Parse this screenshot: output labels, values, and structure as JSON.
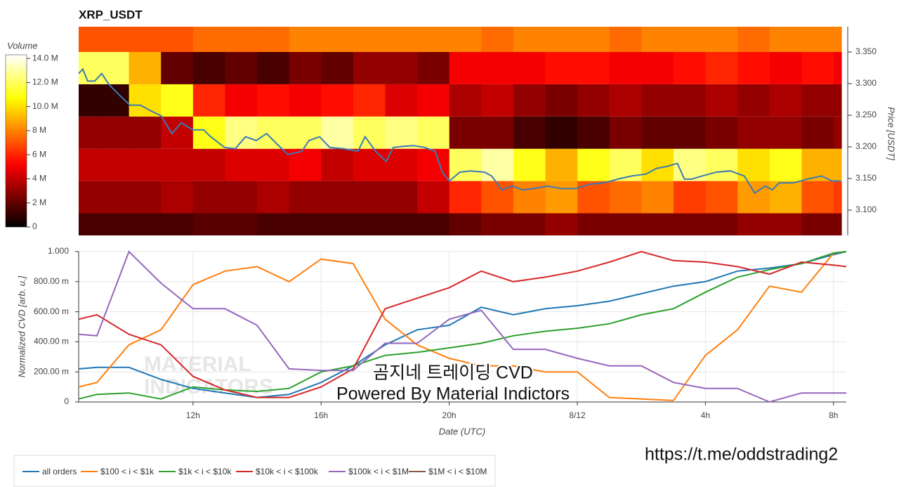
{
  "chart_data": [
    {
      "type": "heatmap",
      "title": "XRP_USDT",
      "y_label": "Price [USDT]",
      "colorbar_label": "Volume",
      "colormap": "hot",
      "xlim": [
        8.43,
        32.24
      ],
      "x_bins": [
        8.43,
        9,
        10,
        11,
        12,
        13,
        14,
        15,
        16,
        17,
        18,
        19,
        20,
        21,
        22,
        23,
        24,
        25,
        26,
        27,
        28,
        29,
        30,
        31,
        32,
        32.24
      ],
      "y_bins": [
        3.06,
        3.095,
        3.146,
        3.197,
        3.248,
        3.299,
        3.35,
        3.39
      ],
      "z": [
        [
          1500000.0,
          1500000.0,
          1500000.0,
          1500000.0,
          1800000.0,
          1800000.0,
          1500000.0,
          1500000.0,
          1500000.0,
          1500000.0,
          1500000.0,
          1500000.0,
          2000000.0,
          2500000.0,
          2500000.0,
          3000000.0,
          2500000.0,
          2500000.0,
          2500000.0,
          2500000.0,
          2500000.0,
          3000000.0,
          3000000.0,
          2500000.0,
          2500000.0
        ],
        [
          3000000.0,
          3000000.0,
          3000000.0,
          3500000.0,
          3000000.0,
          3000000.0,
          3500000.0,
          3000000.0,
          3000000.0,
          3000000.0,
          3000000.0,
          4000000.0,
          6000000.0,
          7000000.0,
          8000000.0,
          8500000.0,
          7000000.0,
          7500000.0,
          8000000.0,
          6500000.0,
          7000000.0,
          8500000.0,
          9000000.0,
          7000000.0,
          6500000.0
        ],
        [
          4000000.0,
          4000000.0,
          4000000.0,
          4000000.0,
          4000000.0,
          4500000.0,
          4500000.0,
          5000000.0,
          4000000.0,
          4500000.0,
          4500000.0,
          5000000.0,
          12000000.0,
          13000000.0,
          11000000.0,
          9000000.0,
          11000000.0,
          12000000.0,
          10000000.0,
          12500000.0,
          12000000.0,
          10000000.0,
          11000000.0,
          9000000.0,
          9000000.0
        ],
        [
          3000000.0,
          3000000.0,
          3000000.0,
          4000000.0,
          11000000.0,
          12500000.0,
          12000000.0,
          12000000.0,
          13000000.0,
          12000000.0,
          12500000.0,
          12000000.0,
          2500000.0,
          2500000.0,
          1500000.0,
          1000000.0,
          1500000.0,
          2500000.0,
          2000000.0,
          2000000.0,
          2500000.0,
          3000000.0,
          3000000.0,
          2500000.0,
          3000000.0
        ],
        [
          1000000.0,
          1000000.0,
          10000000.0,
          11000000.0,
          6000000.0,
          5000000.0,
          5500000.0,
          5000000.0,
          5500000.0,
          6000000.0,
          4500000.0,
          5000000.0,
          3500000.0,
          4000000.0,
          3000000.0,
          2500000.0,
          3000000.0,
          3500000.0,
          3000000.0,
          3000000.0,
          3500000.0,
          3000000.0,
          3500000.0,
          3000000.0,
          3000000.0
        ],
        [
          12000000.0,
          12000000.0,
          9000000.0,
          2000000.0,
          1500000.0,
          2000000.0,
          1500000.0,
          2500000.0,
          2000000.0,
          3000000.0,
          3000000.0,
          2500000.0,
          5000000.0,
          5000000.0,
          5000000.0,
          5500000.0,
          5500000.0,
          5000000.0,
          5000000.0,
          5500000.0,
          6000000.0,
          5500000.0,
          5000000.0,
          5500000.0,
          5000000.0
        ],
        [
          7000000.0,
          7000000.0,
          7000000.0,
          7000000.0,
          7500000.0,
          7500000.0,
          7500000.0,
          8000000.0,
          8000000.0,
          8000000.0,
          8000000.0,
          8000000.0,
          8000000.0,
          7500000.0,
          8000000.0,
          8000000.0,
          8000000.0,
          7500000.0,
          8000000.0,
          8000000.0,
          8000000.0,
          7500000.0,
          8000000.0,
          8000000.0,
          8000000.0
        ]
      ],
      "clim": [
        0,
        14300000
      ],
      "cticks": [
        0,
        {
          "value": 2000000,
          "label": "2 M"
        },
        {
          "value": 4000000,
          "label": "4 M"
        },
        {
          "value": 6000000,
          "label": "6 M"
        },
        {
          "value": 8000000,
          "label": "8 M"
        },
        {
          "value": 10000000,
          "label": "10.0 M"
        },
        {
          "value": 12000000,
          "label": "12.0 M"
        },
        {
          "value": 14000000,
          "label": "14.0 M"
        }
      ],
      "ylim": [
        3.06,
        3.39
      ],
      "yticks": [
        {
          "value": 3.1,
          "label": "3.100"
        },
        {
          "value": 3.15,
          "label": "3.150"
        },
        {
          "value": 3.2,
          "label": "3.200"
        },
        {
          "value": 3.25,
          "label": "3.250"
        },
        {
          "value": 3.3,
          "label": "3.300"
        },
        {
          "value": 3.35,
          "label": "3.350"
        }
      ],
      "line": {
        "color": "#3a7ab8",
        "x": [
          8.43,
          8.56,
          8.71,
          8.93,
          9.15,
          9.37,
          9.7,
          10.03,
          10.36,
          10.68,
          11.01,
          11.34,
          11.63,
          12.0,
          12.33,
          12.55,
          12.99,
          13.32,
          13.64,
          13.97,
          14.3,
          14.63,
          14.96,
          15.4,
          15.62,
          15.95,
          16.27,
          16.71,
          17.15,
          17.37,
          17.7,
          18.03,
          18.25,
          18.58,
          18.9,
          19.23,
          19.56,
          19.78,
          20.0,
          20.33,
          20.66,
          21.1,
          21.32,
          21.64,
          21.97,
          22.3,
          22.63,
          23.07,
          23.51,
          23.95,
          24.38,
          24.82,
          25.26,
          25.7,
          26.14,
          26.47,
          26.79,
          27.12,
          27.34,
          27.56,
          27.89,
          28.33,
          28.77,
          29.21,
          29.53,
          29.86,
          30.08,
          30.3,
          30.74,
          31.18,
          31.62,
          31.95,
          32.23
        ],
        "values": [
          3.316,
          3.323,
          3.304,
          3.304,
          3.316,
          3.299,
          3.282,
          3.266,
          3.266,
          3.257,
          3.249,
          3.221,
          3.238,
          3.227,
          3.227,
          3.216,
          3.199,
          3.197,
          3.216,
          3.21,
          3.221,
          3.204,
          3.188,
          3.193,
          3.21,
          3.216,
          3.199,
          3.197,
          3.193,
          3.216,
          3.193,
          3.177,
          3.199,
          3.201,
          3.202,
          3.199,
          3.193,
          3.16,
          3.146,
          3.16,
          3.162,
          3.16,
          3.154,
          3.132,
          3.138,
          3.132,
          3.134,
          3.138,
          3.134,
          3.134,
          3.141,
          3.143,
          3.149,
          3.154,
          3.157,
          3.166,
          3.169,
          3.174,
          3.149,
          3.149,
          3.154,
          3.16,
          3.162,
          3.154,
          3.127,
          3.138,
          3.132,
          3.143,
          3.143,
          3.149,
          3.154,
          3.146,
          3.146
        ]
      }
    },
    {
      "type": "line",
      "x_label": "Date (UTC)",
      "y_label": "Normalized CVD [arb. u.]",
      "xlim": [
        8.43,
        32.4
      ],
      "xticks": [
        {
          "value": 12,
          "label": "12h"
        },
        {
          "value": 16,
          "label": "16h"
        },
        {
          "value": 20,
          "label": "20h"
        },
        {
          "value": 24,
          "label": "8/12"
        },
        {
          "value": 28,
          "label": "4h"
        },
        {
          "value": 32,
          "label": "8h"
        }
      ],
      "ylim": [
        0,
        1
      ],
      "yticks": [
        0,
        {
          "value": 0.2,
          "label": "200.00 m"
        },
        {
          "value": 0.4,
          "label": "400.00 m"
        },
        {
          "value": 0.6,
          "label": "600.00 m"
        },
        {
          "value": 0.8,
          "label": "800.00 m"
        },
        {
          "value": 1,
          "label": "1.000"
        }
      ],
      "grid": true,
      "legend": "bottom-left",
      "x": [
        8.43,
        9,
        10,
        11,
        12,
        13,
        14,
        15,
        16,
        17,
        18,
        19,
        20,
        21,
        22,
        23,
        24,
        25,
        26,
        27,
        28,
        29,
        30,
        31,
        32,
        32.4
      ],
      "series": [
        {
          "name": "all orders",
          "color": "#1f77b4",
          "values": [
            0.22,
            0.23,
            0.23,
            0.15,
            0.09,
            0.06,
            0.03,
            0.05,
            0.13,
            0.24,
            0.38,
            0.48,
            0.51,
            0.63,
            0.58,
            0.62,
            0.64,
            0.67,
            0.72,
            0.77,
            0.8,
            0.87,
            0.89,
            0.92,
            0.98,
            1.0
          ]
        },
        {
          "name": "$100 < i < $1k",
          "color": "#ff7f0e",
          "values": [
            0.1,
            0.13,
            0.38,
            0.48,
            0.78,
            0.87,
            0.9,
            0.8,
            0.95,
            0.92,
            0.55,
            0.38,
            0.29,
            0.24,
            0.24,
            0.2,
            0.2,
            0.03,
            0.02,
            0.01,
            0.31,
            0.48,
            0.77,
            0.73,
            0.99,
            1.0
          ]
        },
        {
          "name": "$1k < i < $10k",
          "color": "#2ca02c",
          "values": [
            0.02,
            0.05,
            0.06,
            0.02,
            0.1,
            0.08,
            0.07,
            0.09,
            0.2,
            0.24,
            0.31,
            0.33,
            0.36,
            0.39,
            0.44,
            0.47,
            0.49,
            0.52,
            0.58,
            0.62,
            0.73,
            0.83,
            0.88,
            0.92,
            0.99,
            1.0
          ]
        },
        {
          "name": "$10k < i < $100k",
          "color": "#d62728",
          "values": [
            0.55,
            0.58,
            0.45,
            0.38,
            0.17,
            0.08,
            0.03,
            0.03,
            0.1,
            0.22,
            0.62,
            0.69,
            0.76,
            0.87,
            0.8,
            0.83,
            0.87,
            0.93,
            1.0,
            0.94,
            0.93,
            0.9,
            0.85,
            0.93,
            0.91,
            0.9
          ]
        },
        {
          "name": "$100k < i < $1M",
          "color": "#9467bd",
          "values": [
            0.45,
            0.44,
            1.0,
            0.79,
            0.62,
            0.62,
            0.51,
            0.22,
            0.21,
            0.21,
            0.39,
            0.39,
            0.55,
            0.61,
            0.35,
            0.35,
            0.29,
            0.24,
            0.24,
            0.13,
            0.09,
            0.09,
            0,
            0.06,
            0.06,
            0.06
          ]
        },
        {
          "name": "$1M < i < $10M",
          "color": "#8c564b"
        }
      ]
    }
  ],
  "annotations": [
    "곰지네 트레이딩 CVD",
    "Powered By Material Indictors"
  ],
  "watermark": [
    "MATERIAL",
    "INDICATORS"
  ],
  "footer": "https://t.me/oddstrading2"
}
